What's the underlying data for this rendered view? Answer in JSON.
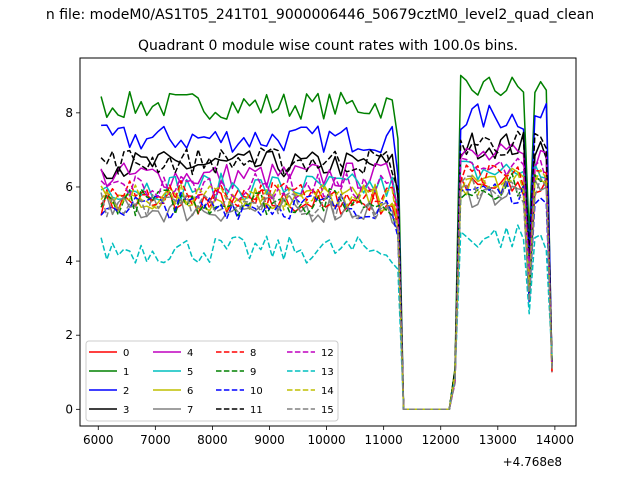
{
  "chart_data": {
    "type": "line",
    "suptitle": "n file: modeM0/AS1T05_241T01_9000006446_50679cztM0_level2_quad_clean",
    "title": "Quadrant 0 module wise count rates with 100.0s bins.",
    "offset_text": "+4.768e8",
    "xlim": [
      5680,
      14370
    ],
    "ylim": [
      -0.45,
      9.48
    ],
    "x_ticks": [
      6000,
      7000,
      8000,
      9000,
      10000,
      11000,
      12000,
      13000,
      14000
    ],
    "x_tick_labels": [
      "6000",
      "7000",
      "8000",
      "9000",
      "10000",
      "11000",
      "12000",
      "13000",
      "14000"
    ],
    "y_ticks": [
      0,
      2,
      4,
      6,
      8
    ],
    "y_tick_labels": [
      "0",
      "2",
      "4",
      "6",
      "8"
    ],
    "x_start": 6050,
    "x_step": 100,
    "legend_position": "lower-left",
    "legend_columns": 4,
    "series": [
      {
        "name": "0",
        "color": "#ff0000",
        "style": "solid",
        "base": 5.6,
        "gap": 0.37
      },
      {
        "name": "1",
        "color": "#008000",
        "style": "solid",
        "base": 8.2,
        "gap": 0.47
      },
      {
        "name": "2",
        "color": "#0000ff",
        "style": "solid",
        "base": 7.3,
        "gap": 0.58
      },
      {
        "name": "3",
        "color": "#000000",
        "style": "solid",
        "base": 6.6,
        "gap": 0.53
      },
      {
        "name": "4",
        "color": "#bf00bf",
        "style": "solid",
        "base": 6.3,
        "gap": 0.51
      },
      {
        "name": "5",
        "color": "#00bfbf",
        "style": "solid",
        "base": 6.0,
        "gap": 0.42
      },
      {
        "name": "6",
        "color": "#bfbf00",
        "style": "solid",
        "base": 5.7,
        "gap": 0.44
      },
      {
        "name": "7",
        "color": "#808080",
        "style": "solid",
        "base": 5.4,
        "gap": 0.42
      },
      {
        "name": "8",
        "color": "#ff0000",
        "style": "dashed",
        "base": 5.8,
        "gap": 0.44
      },
      {
        "name": "9",
        "color": "#008000",
        "style": "dashed",
        "base": 5.6,
        "gap": 0.42
      },
      {
        "name": "10",
        "color": "#0000ff",
        "style": "dashed",
        "base": 5.5,
        "gap": 0.41
      },
      {
        "name": "11",
        "color": "#000000",
        "style": "dashed",
        "base": 6.7,
        "gap": 0.47
      },
      {
        "name": "12",
        "color": "#bf00bf",
        "style": "dashed",
        "base": 6.0,
        "gap": 0.44
      },
      {
        "name": "13",
        "color": "#00bfbf",
        "style": "dashed",
        "base": 4.3,
        "gap": 0.36
      },
      {
        "name": "14",
        "color": "#bfbf00",
        "style": "dashed",
        "base": 5.7,
        "gap": 0.44
      },
      {
        "name": "15",
        "color": "#808080",
        "style": "dashed",
        "base": 5.5,
        "gap": 0.42
      }
    ]
  }
}
